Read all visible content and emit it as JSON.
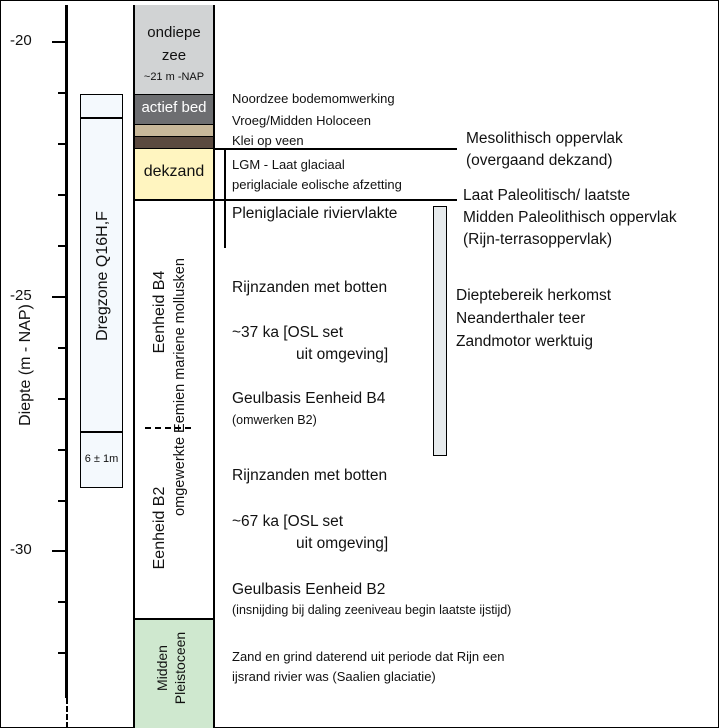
{
  "axis": {
    "label": "Diepte (m - NAP)",
    "ticks": [
      "-20",
      "-25",
      "-30"
    ]
  },
  "dredge_zone": {
    "label": "Dregzone Q16H,F",
    "uncertainty": "6 ± 1m"
  },
  "column": {
    "sea_label_1": "ondiepe",
    "sea_label_2": "zee",
    "sea_depth": "~21 m -NAP",
    "active_bed": "actief bed",
    "cover_sand": "dekzand",
    "unit_b4": "Eenheid B4",
    "unit_b2": "Eenheid B2",
    "eemian_label": "omgewerkte Eemien mariene mollusken",
    "middle_pleistocene_1": "Midden",
    "middle_pleistocene_2": "Pleistoceen"
  },
  "annotations": {
    "northsea_1": "Noordzee bodemomwerking",
    "northsea_2": "Vroeg/Midden Holoceen",
    "clay": "Klei op veen",
    "lgm_1": "LGM - Laat glaciaal",
    "lgm_2": "periglaciale eolische afzetting",
    "plenig": "Pleniglaciale riviervlakte",
    "rhine_sands_b4": "Rijnzanden met botten",
    "osl_b4_1": "~37 ka [OSL set",
    "osl_b4_2": "uit omgeving]",
    "base_b4": "Geulbasis Eenheid B4",
    "base_b4_note": "(omwerken B2)",
    "rhine_sands_b2": "Rijnzanden met botten",
    "osl_b2_1": "~67 ka [OSL set",
    "osl_b2_2": "uit omgeving]",
    "base_b2": "Geulbasis Eenheid B2",
    "base_b2_note": "(insnijding bij daling zeeniveau begin laatste ijstijd)",
    "saalian_1": "Zand en grind daterend uit periode dat Rijn een",
    "saalian_2": "ijsrand rivier was (Saalien glaciatie)",
    "meso_1": "Mesolithisch oppervlak",
    "meso_2": "(overgaand dekzand)",
    "paleo_1": "Laat Paleolitisch/ laatste",
    "paleo_2": "Midden Paleolithisch oppervlak",
    "paleo_3": "(Rijn-terrasoppervlak)",
    "range_1": "Dieptebereik herkomst",
    "range_2": "Neanderthaler teer",
    "range_3": "Zandmotor werktuig"
  },
  "colors": {
    "sea": "#d1d3d4",
    "active_bed": "#6d6e71",
    "light_tan": "#c8b89a",
    "dark_brown": "#5b4a3f",
    "cover_sand": "#fff5c0",
    "pleistocene": "#cfe8cf",
    "dredge_bg": "#f4f9fd",
    "range_bar": "#e6eaec"
  }
}
